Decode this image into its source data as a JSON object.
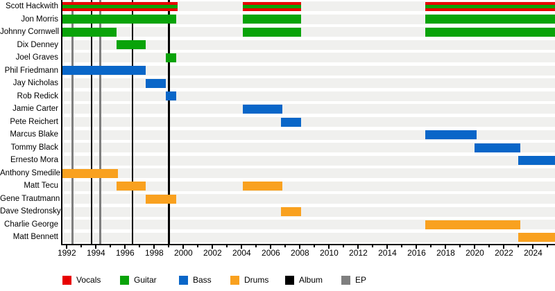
{
  "chart_data": {
    "type": "timeline",
    "description": "Band members timeline chart with album and EP release markers",
    "axis": {
      "min": 1991.7,
      "max": 2025.5,
      "major_ticks": [
        1992,
        1994,
        1996,
        1998,
        2000,
        2002,
        2004,
        2006,
        2008,
        2010,
        2012,
        2014,
        2016,
        2018,
        2020,
        2022,
        2024
      ],
      "minor_tick_step": 1
    },
    "colors": {
      "vocals": "#e80000",
      "guitar": "#09a309",
      "bass": "#0966c8",
      "drums": "#f9a11f",
      "album": "#000000",
      "ep": "#7f7f7f",
      "row_band": "#f0f0ee",
      "background": "#ffffff"
    },
    "members": [
      {
        "name": "Scott Hackwith",
        "roles": [
          "vocals",
          "guitar"
        ],
        "periods": [
          [
            1991.7,
            1999.6
          ],
          [
            2004.1,
            2008.1
          ],
          [
            2016.6,
            2025.5
          ]
        ]
      },
      {
        "name": "Jon Morris",
        "roles": [
          "guitar"
        ],
        "periods": [
          [
            1991.7,
            1999.5
          ],
          [
            2004.1,
            2008.1
          ],
          [
            2016.6,
            2025.5
          ]
        ]
      },
      {
        "name": "Johnny Cornwell",
        "roles": [
          "guitar"
        ],
        "periods": [
          [
            1991.7,
            1995.4
          ],
          [
            2004.1,
            2008.1
          ],
          [
            2016.6,
            2025.5
          ]
        ]
      },
      {
        "name": "Dix Denney",
        "roles": [
          "guitar"
        ],
        "periods": [
          [
            1995.4,
            1997.4
          ]
        ]
      },
      {
        "name": "Joel Graves",
        "roles": [
          "guitar"
        ],
        "periods": [
          [
            1998.8,
            1999.5
          ]
        ]
      },
      {
        "name": "Phil Friedmann",
        "roles": [
          "bass"
        ],
        "periods": [
          [
            1991.7,
            1997.4
          ]
        ]
      },
      {
        "name": "Jay Nicholas",
        "roles": [
          "bass"
        ],
        "periods": [
          [
            1997.4,
            1998.8
          ]
        ]
      },
      {
        "name": "Rob Redick",
        "roles": [
          "bass"
        ],
        "periods": [
          [
            1998.8,
            1999.5
          ]
        ]
      },
      {
        "name": "Jamie Carter",
        "roles": [
          "bass"
        ],
        "periods": [
          [
            2004.1,
            2006.8
          ]
        ]
      },
      {
        "name": "Pete Reichert",
        "roles": [
          "bass"
        ],
        "periods": [
          [
            2006.7,
            2008.1
          ]
        ]
      },
      {
        "name": "Marcus Blake",
        "roles": [
          "bass"
        ],
        "periods": [
          [
            2016.6,
            2020.1
          ]
        ]
      },
      {
        "name": "Tommy Black",
        "roles": [
          "bass"
        ],
        "periods": [
          [
            2020.0,
            2023.1
          ]
        ]
      },
      {
        "name": "Ernesto Mora",
        "roles": [
          "bass"
        ],
        "periods": [
          [
            2023.0,
            2025.5
          ]
        ]
      },
      {
        "name": "Anthony Smedile",
        "roles": [
          "drums"
        ],
        "periods": [
          [
            1991.7,
            1995.5
          ]
        ]
      },
      {
        "name": "Matt Tecu",
        "roles": [
          "drums"
        ],
        "periods": [
          [
            1995.4,
            1997.4
          ],
          [
            2004.1,
            2006.8
          ]
        ]
      },
      {
        "name": "Gene Trautmann",
        "roles": [
          "drums"
        ],
        "periods": [
          [
            1997.4,
            1999.5
          ]
        ]
      },
      {
        "name": "Dave Stedronsky",
        "roles": [
          "drums"
        ],
        "periods": [
          [
            2006.7,
            2008.1
          ]
        ]
      },
      {
        "name": "Charlie George",
        "roles": [
          "drums"
        ],
        "periods": [
          [
            2016.6,
            2023.1
          ]
        ]
      },
      {
        "name": "Matt Bennett",
        "roles": [
          "drums"
        ],
        "periods": [
          [
            2023.0,
            2025.5
          ]
        ]
      }
    ],
    "markers": {
      "album_lines": [
        1993.7,
        1996.5,
        1999.0
      ],
      "ep_lines": [
        1992.4,
        1994.3
      ]
    },
    "legend": [
      {
        "label": "Vocals",
        "color_key": "vocals"
      },
      {
        "label": "Guitar",
        "color_key": "guitar"
      },
      {
        "label": "Bass",
        "color_key": "bass"
      },
      {
        "label": "Drums",
        "color_key": "drums"
      },
      {
        "label": "Album",
        "color_key": "album"
      },
      {
        "label": "EP",
        "color_key": "ep"
      }
    ]
  }
}
